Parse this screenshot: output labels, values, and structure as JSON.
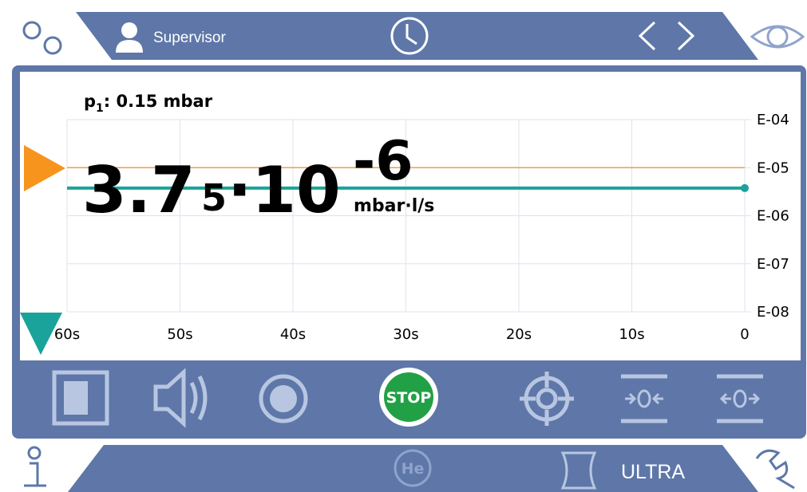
{
  "header": {
    "user": "Supervisor"
  },
  "pressure": {
    "symbol": "p",
    "subscript": "1",
    "text": ": 0.15 mbar"
  },
  "reading": {
    "mantissa": "3.7",
    "digit": "5",
    "base": "·10",
    "exponent": "-6",
    "unit": "mbar·l/s"
  },
  "chart_data": {
    "type": "line",
    "xlim": [
      60,
      0
    ],
    "xticks": [
      {
        "value": 60,
        "label": "60s"
      },
      {
        "value": 50,
        "label": "50s"
      },
      {
        "value": 40,
        "label": "40s"
      },
      {
        "value": 30,
        "label": "30s"
      },
      {
        "value": 20,
        "label": "20s"
      },
      {
        "value": 10,
        "label": "10s"
      },
      0
    ],
    "ylim": [
      1e-08,
      0.0001
    ],
    "log_y": true,
    "grid": true,
    "yticks": [
      {
        "value": 0.0001,
        "label": "E-04"
      },
      {
        "value": 1e-05,
        "label": "E-05"
      },
      {
        "value": 1e-06,
        "label": "E-06"
      },
      {
        "value": 1e-07,
        "label": "E-07"
      },
      {
        "value": 1e-08,
        "label": "E-08"
      }
    ],
    "series": [
      {
        "color": "#f0a040",
        "x": [
          60,
          0
        ],
        "values": [
          1e-05,
          1e-05
        ]
      },
      {
        "color": "#1aa39a",
        "x": [
          60,
          0
        ],
        "values": [
          3.75e-06,
          3.75e-06
        ]
      }
    ]
  },
  "toolbar": {
    "stop": "STOP"
  },
  "footer": {
    "gas": "He",
    "mode": "ULTRA"
  }
}
